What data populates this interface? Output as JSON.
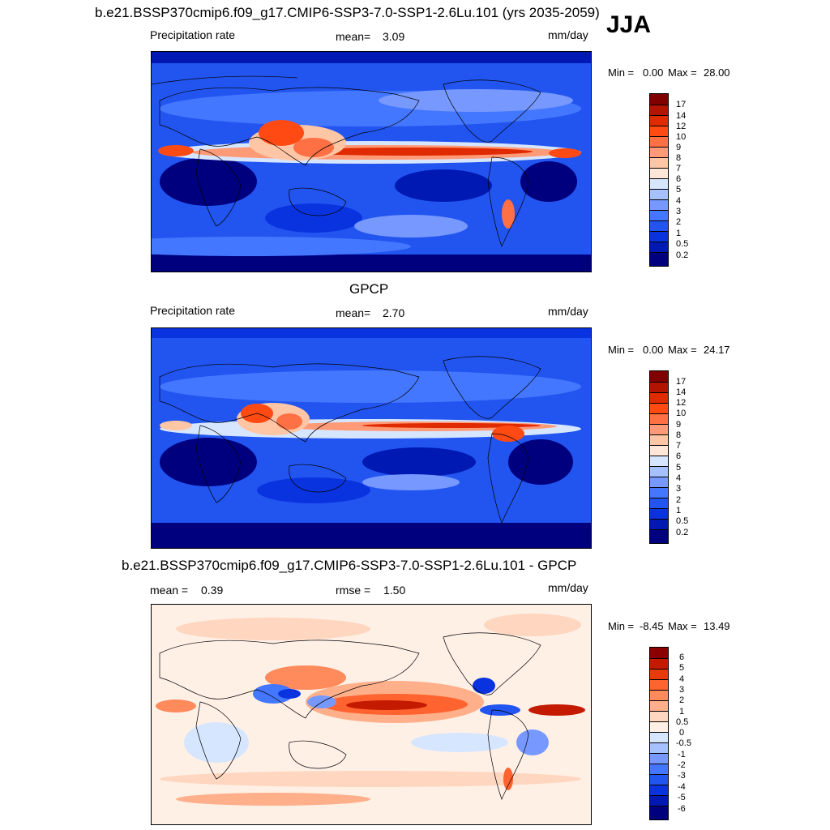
{
  "figure": {
    "main_title": "b.e21.BSSP370cmip6.f09_g17.CMIP6-SSP3-7.0-SSP1-2.6Lu.101 (yrs 2035-2059)",
    "season": "JJA"
  },
  "chart_data": [
    {
      "type": "heatmap",
      "panel": "model",
      "variable": "Precipitation rate",
      "units": "mm/day",
      "stat_label": "mean=",
      "stat_value": "3.09",
      "min_label": "Min =",
      "min_value": "0.00",
      "max_label": "Max =",
      "max_value": "28.00",
      "levels": [
        "0.2",
        "0.5",
        "1",
        "2",
        "3",
        "4",
        "5",
        "6",
        "7",
        "8",
        "9",
        "10",
        "12",
        "14",
        "17"
      ],
      "colors": [
        "#00007f",
        "#0019b3",
        "#0a33e0",
        "#2255f0",
        "#4477ff",
        "#7799ff",
        "#a6c1ff",
        "#d6e6ff",
        "#ffe6d6",
        "#ffc6a6",
        "#ff9a77",
        "#ff7044",
        "#ff4a14",
        "#e02a00",
        "#b31400",
        "#800000"
      ],
      "features": [
        "ITCZ band",
        "Indian monsoon",
        "Western Pacific warm pool",
        "South American Andes maximum"
      ]
    },
    {
      "type": "heatmap",
      "panel": "observation",
      "dataset_title": "GPCP",
      "variable": "Precipitation rate",
      "units": "mm/day",
      "stat_label": "mean=",
      "stat_value": "2.70",
      "min_label": "Min =",
      "min_value": "0.00",
      "max_label": "Max =",
      "max_value": "24.17",
      "levels": [
        "0.2",
        "0.5",
        "1",
        "2",
        "3",
        "4",
        "5",
        "6",
        "7",
        "8",
        "9",
        "10",
        "12",
        "14",
        "17"
      ],
      "colors": [
        "#00007f",
        "#0019b3",
        "#0a33e0",
        "#2255f0",
        "#4477ff",
        "#7799ff",
        "#a6c1ff",
        "#d6e6ff",
        "#ffe6d6",
        "#ffc6a6",
        "#ff9a77",
        "#ff7044",
        "#ff4a14",
        "#e02a00",
        "#b31400",
        "#800000"
      ],
      "features": [
        "ITCZ band",
        "Bay of Bengal maximum",
        "Central America maximum"
      ]
    },
    {
      "type": "heatmap",
      "panel": "difference",
      "title": "b.e21.BSSP370cmip6.f09_g17.CMIP6-SSP3-7.0-SSP1-2.6Lu.101 - GPCP",
      "units": "mm/day",
      "stat_label": "mean =",
      "stat_value": "0.39",
      "rmse_label": "rmse =",
      "rmse_value": "1.50",
      "min_label": "Min =",
      "min_value": "-8.45",
      "max_label": "Max =",
      "max_value": "13.49",
      "levels": [
        "-6",
        "-5",
        "-4",
        "-3",
        "-2",
        "-1",
        "-0.5",
        "0",
        "0.5",
        "1",
        "2",
        "3",
        "4",
        "5",
        "6"
      ],
      "colors": [
        "#00007f",
        "#0019b3",
        "#0a33e0",
        "#2255f0",
        "#4477ff",
        "#7799ff",
        "#a6c1ff",
        "#d6e6ff",
        "#fff0e6",
        "#ffd6bf",
        "#ffb08a",
        "#ff8a5c",
        "#ff6330",
        "#e83a0a",
        "#c41a00",
        "#8a0000"
      ],
      "features": [
        "positive bias over tropical Pacific",
        "negative bias over Maritime Continent",
        "positive bias Atlantic ITCZ"
      ]
    }
  ]
}
